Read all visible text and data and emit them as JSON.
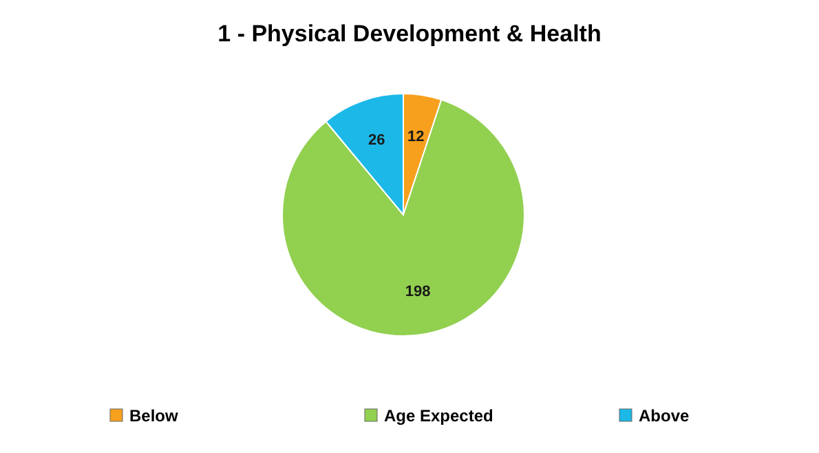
{
  "chart_data": {
    "type": "pie",
    "title": "1 - Physical Development & Health",
    "categories": [
      "Below",
      "Age Expected",
      "Above"
    ],
    "values": [
      12,
      198,
      26
    ],
    "colors": [
      "#f7a01e",
      "#92d050",
      "#1cb8e8"
    ],
    "data_labels": true,
    "legend": "bottom"
  }
}
